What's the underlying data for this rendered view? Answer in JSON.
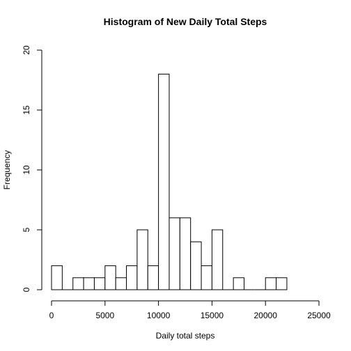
{
  "chart_data": {
    "type": "bar",
    "title": "Histogram of New Daily Total Steps",
    "xlabel": "Daily total steps",
    "ylabel": "Frequency",
    "xlim": [
      0,
      25000
    ],
    "ylim": [
      0,
      20
    ],
    "xticks": [
      0,
      5000,
      10000,
      15000,
      20000,
      25000
    ],
    "yticks": [
      0,
      5,
      10,
      15,
      20
    ],
    "bin_width": 1000,
    "bins": [
      {
        "x0": 0,
        "x1": 1000,
        "count": 2
      },
      {
        "x0": 1000,
        "x1": 2000,
        "count": 0
      },
      {
        "x0": 2000,
        "x1": 3000,
        "count": 1
      },
      {
        "x0": 3000,
        "x1": 4000,
        "count": 1
      },
      {
        "x0": 4000,
        "x1": 5000,
        "count": 1
      },
      {
        "x0": 5000,
        "x1": 6000,
        "count": 2
      },
      {
        "x0": 6000,
        "x1": 7000,
        "count": 1
      },
      {
        "x0": 7000,
        "x1": 8000,
        "count": 2
      },
      {
        "x0": 8000,
        "x1": 9000,
        "count": 5
      },
      {
        "x0": 9000,
        "x1": 10000,
        "count": 2
      },
      {
        "x0": 10000,
        "x1": 11000,
        "count": 18
      },
      {
        "x0": 11000,
        "x1": 12000,
        "count": 6
      },
      {
        "x0": 12000,
        "x1": 13000,
        "count": 6
      },
      {
        "x0": 13000,
        "x1": 14000,
        "count": 4
      },
      {
        "x0": 14000,
        "x1": 15000,
        "count": 2
      },
      {
        "x0": 15000,
        "x1": 16000,
        "count": 5
      },
      {
        "x0": 16000,
        "x1": 17000,
        "count": 0
      },
      {
        "x0": 17000,
        "x1": 18000,
        "count": 1
      },
      {
        "x0": 18000,
        "x1": 19000,
        "count": 0
      },
      {
        "x0": 19000,
        "x1": 20000,
        "count": 0
      },
      {
        "x0": 20000,
        "x1": 21000,
        "count": 1
      },
      {
        "x0": 21000,
        "x1": 22000,
        "count": 1
      }
    ],
    "bar_fill": "#ffffff",
    "bar_stroke": "#000000",
    "grid": false,
    "legend": "none"
  }
}
